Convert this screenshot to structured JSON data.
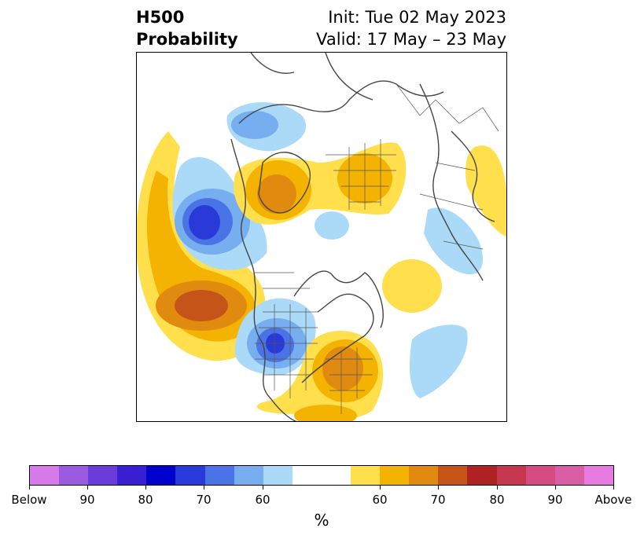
{
  "title": {
    "variable": "H500",
    "product": "Probability",
    "init": "Init: Tue 02 May 2023",
    "valid": "Valid: 17 May – 23 May"
  },
  "colorbar": {
    "unit_label": "%",
    "colors": [
      "#d87aea",
      "#9b5ae0",
      "#6c3cda",
      "#3a1ed4",
      "#0000cc",
      "#2a3ad8",
      "#4a73e6",
      "#76aef0",
      "#abd9f8",
      "#ffffff",
      "#ffffff",
      "#ffe04c",
      "#f3b300",
      "#e08b10",
      "#c45418",
      "#ae2222",
      "#c4374e",
      "#d44c82",
      "#d95ea6",
      "#e67ae0"
    ],
    "labels": [
      "Below",
      "90",
      "80",
      "70",
      "60",
      "60",
      "70",
      "80",
      "90",
      "Above"
    ]
  },
  "map": {
    "features": [
      "North polar stereographic map with coastlines and political boundaries",
      "Below-normal (blue) anomaly centers: Gulf of Alaska, north-central United States, western Russia, central Atlantic",
      "Above-normal (yellow/orange) anomaly centers: central North Pacific, eastern United States, Greenland, Arctic Russia"
    ]
  }
}
